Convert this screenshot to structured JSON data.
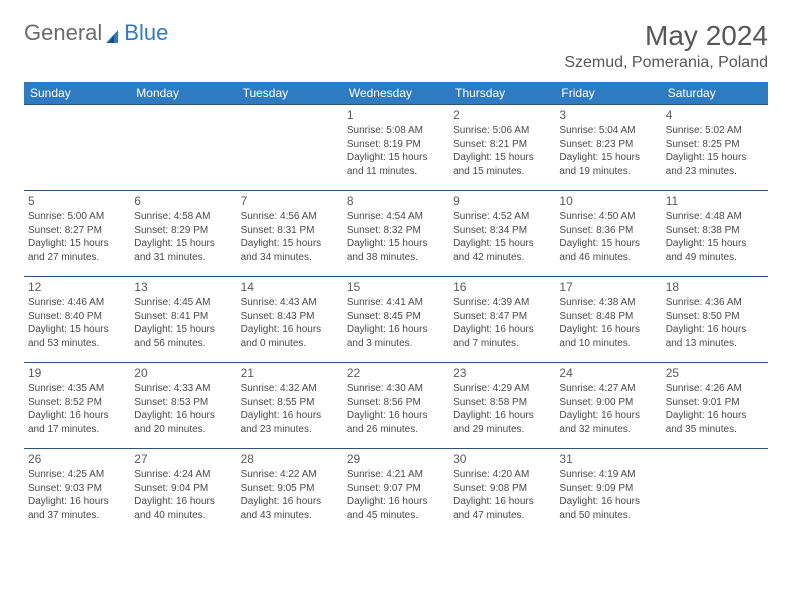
{
  "logo": {
    "text1": "General",
    "text2": "Blue",
    "color1": "#6b6b6b",
    "color2": "#2f7bc1"
  },
  "header": {
    "title": "May 2024",
    "location": "Szemud, Pomerania, Poland"
  },
  "columns": [
    "Sunday",
    "Monday",
    "Tuesday",
    "Wednesday",
    "Thursday",
    "Friday",
    "Saturday"
  ],
  "colors": {
    "header_bg": "#2f7bc1",
    "header_text": "#ffffff",
    "row_border": "#2b5679",
    "text": "#4a4a4a",
    "title": "#575757"
  },
  "weeks": [
    [
      null,
      null,
      null,
      {
        "d": "1",
        "rise": "5:08 AM",
        "set": "8:19 PM",
        "dl": "15 hours and 11 minutes."
      },
      {
        "d": "2",
        "rise": "5:06 AM",
        "set": "8:21 PM",
        "dl": "15 hours and 15 minutes."
      },
      {
        "d": "3",
        "rise": "5:04 AM",
        "set": "8:23 PM",
        "dl": "15 hours and 19 minutes."
      },
      {
        "d": "4",
        "rise": "5:02 AM",
        "set": "8:25 PM",
        "dl": "15 hours and 23 minutes."
      }
    ],
    [
      {
        "d": "5",
        "rise": "5:00 AM",
        "set": "8:27 PM",
        "dl": "15 hours and 27 minutes."
      },
      {
        "d": "6",
        "rise": "4:58 AM",
        "set": "8:29 PM",
        "dl": "15 hours and 31 minutes."
      },
      {
        "d": "7",
        "rise": "4:56 AM",
        "set": "8:31 PM",
        "dl": "15 hours and 34 minutes."
      },
      {
        "d": "8",
        "rise": "4:54 AM",
        "set": "8:32 PM",
        "dl": "15 hours and 38 minutes."
      },
      {
        "d": "9",
        "rise": "4:52 AM",
        "set": "8:34 PM",
        "dl": "15 hours and 42 minutes."
      },
      {
        "d": "10",
        "rise": "4:50 AM",
        "set": "8:36 PM",
        "dl": "15 hours and 46 minutes."
      },
      {
        "d": "11",
        "rise": "4:48 AM",
        "set": "8:38 PM",
        "dl": "15 hours and 49 minutes."
      }
    ],
    [
      {
        "d": "12",
        "rise": "4:46 AM",
        "set": "8:40 PM",
        "dl": "15 hours and 53 minutes."
      },
      {
        "d": "13",
        "rise": "4:45 AM",
        "set": "8:41 PM",
        "dl": "15 hours and 56 minutes."
      },
      {
        "d": "14",
        "rise": "4:43 AM",
        "set": "8:43 PM",
        "dl": "16 hours and 0 minutes."
      },
      {
        "d": "15",
        "rise": "4:41 AM",
        "set": "8:45 PM",
        "dl": "16 hours and 3 minutes."
      },
      {
        "d": "16",
        "rise": "4:39 AM",
        "set": "8:47 PM",
        "dl": "16 hours and 7 minutes."
      },
      {
        "d": "17",
        "rise": "4:38 AM",
        "set": "8:48 PM",
        "dl": "16 hours and 10 minutes."
      },
      {
        "d": "18",
        "rise": "4:36 AM",
        "set": "8:50 PM",
        "dl": "16 hours and 13 minutes."
      }
    ],
    [
      {
        "d": "19",
        "rise": "4:35 AM",
        "set": "8:52 PM",
        "dl": "16 hours and 17 minutes."
      },
      {
        "d": "20",
        "rise": "4:33 AM",
        "set": "8:53 PM",
        "dl": "16 hours and 20 minutes."
      },
      {
        "d": "21",
        "rise": "4:32 AM",
        "set": "8:55 PM",
        "dl": "16 hours and 23 minutes."
      },
      {
        "d": "22",
        "rise": "4:30 AM",
        "set": "8:56 PM",
        "dl": "16 hours and 26 minutes."
      },
      {
        "d": "23",
        "rise": "4:29 AM",
        "set": "8:58 PM",
        "dl": "16 hours and 29 minutes."
      },
      {
        "d": "24",
        "rise": "4:27 AM",
        "set": "9:00 PM",
        "dl": "16 hours and 32 minutes."
      },
      {
        "d": "25",
        "rise": "4:26 AM",
        "set": "9:01 PM",
        "dl": "16 hours and 35 minutes."
      }
    ],
    [
      {
        "d": "26",
        "rise": "4:25 AM",
        "set": "9:03 PM",
        "dl": "16 hours and 37 minutes."
      },
      {
        "d": "27",
        "rise": "4:24 AM",
        "set": "9:04 PM",
        "dl": "16 hours and 40 minutes."
      },
      {
        "d": "28",
        "rise": "4:22 AM",
        "set": "9:05 PM",
        "dl": "16 hours and 43 minutes."
      },
      {
        "d": "29",
        "rise": "4:21 AM",
        "set": "9:07 PM",
        "dl": "16 hours and 45 minutes."
      },
      {
        "d": "30",
        "rise": "4:20 AM",
        "set": "9:08 PM",
        "dl": "16 hours and 47 minutes."
      },
      {
        "d": "31",
        "rise": "4:19 AM",
        "set": "9:09 PM",
        "dl": "16 hours and 50 minutes."
      },
      null
    ]
  ],
  "labels": {
    "sunrise": "Sunrise:",
    "sunset": "Sunset:",
    "daylight": "Daylight:"
  }
}
